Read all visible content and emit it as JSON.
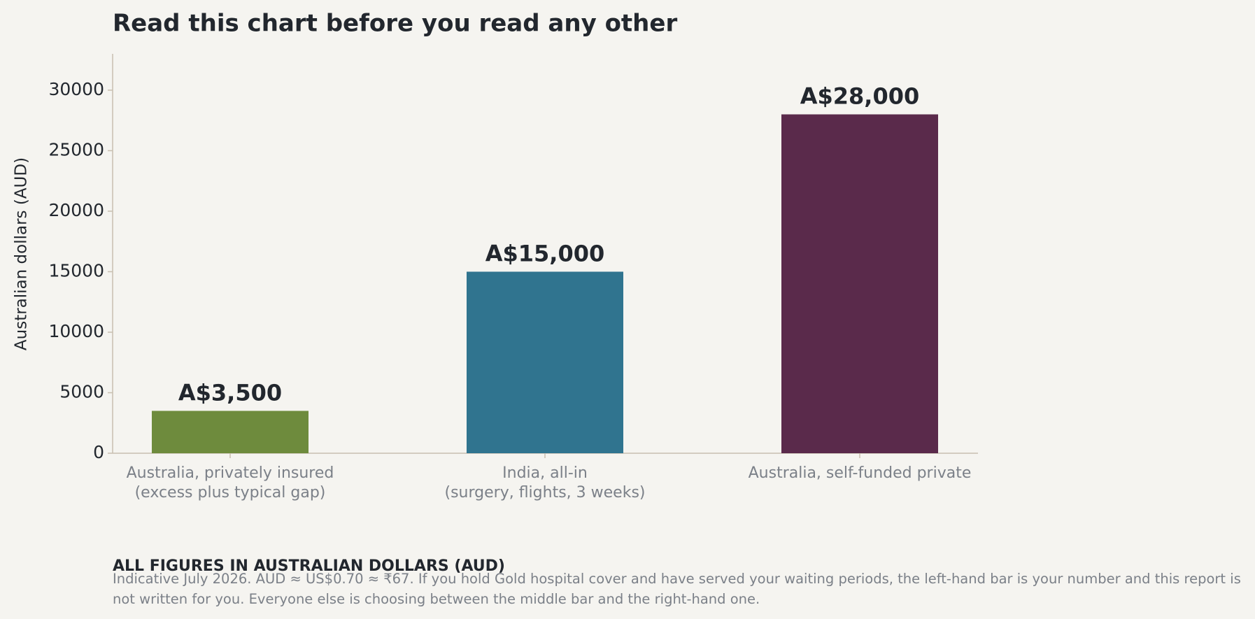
{
  "chart_data": {
    "type": "bar",
    "title": "Read this chart before you read any other",
    "y_label": "Australian dollars (AUD)",
    "categories": [
      "Australia, privately insured\n(excess plus typical gap)",
      "India, all-in\n(surgery, flights, 3 weeks)",
      "Australia, self-funded private"
    ],
    "values": [
      3500,
      15000,
      28000
    ],
    "value_labels": [
      "A$3,500",
      "A$15,000",
      "A$28,000"
    ],
    "colors": [
      "#6e8b3d",
      "#30748f",
      "#5a2a4b"
    ],
    "ylim": [
      0,
      33000
    ],
    "yticks": [
      0,
      5000,
      10000,
      15000,
      20000,
      25000,
      30000
    ],
    "grid": false
  },
  "footer": {
    "heading": "ALL FIGURES IN AUSTRALIAN DOLLARS (AUD)",
    "note": "Indicative July 2026. AUD ≈ US$0.70 ≈ ₹67. If you hold Gold hospital cover and have served your waiting periods, the left-hand bar is your number and this report is not written for you. Everyone else is choosing between the middle bar and the right-hand one."
  }
}
